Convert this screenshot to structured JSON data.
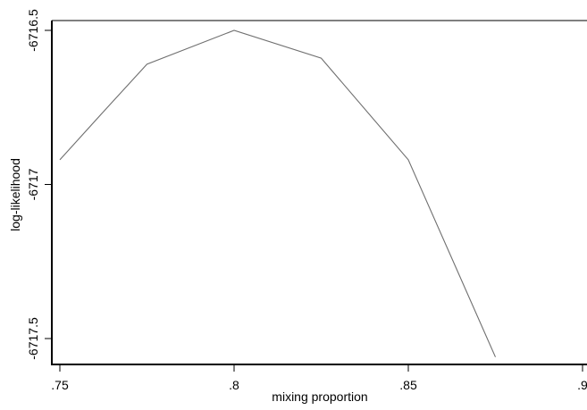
{
  "chart_data": {
    "type": "line",
    "xlabel": "mixing proportion",
    "ylabel": "log-likelihood",
    "xlim": [
      0.75,
      0.9
    ],
    "ylim": [
      -6717.5,
      -6716.5
    ],
    "x_ticks": [
      0.75,
      0.8,
      0.85,
      0.9
    ],
    "x_tick_labels": [
      ".75",
      ".8",
      ".85",
      ".9"
    ],
    "y_ticks": [
      -6716.5,
      -6717,
      -6717.5
    ],
    "y_tick_labels": [
      "-6716.5",
      "-6717",
      "-6717.5"
    ],
    "grid": false,
    "series": [
      {
        "color": "#6f6f6f",
        "x": [
          0.75,
          0.762,
          0.775,
          0.8,
          0.825,
          0.85,
          0.875
        ],
        "y": [
          -6716.92,
          -6716.77,
          -6716.61,
          -6716.5,
          -6716.59,
          -6716.92,
          -6717.56
        ]
      }
    ]
  }
}
